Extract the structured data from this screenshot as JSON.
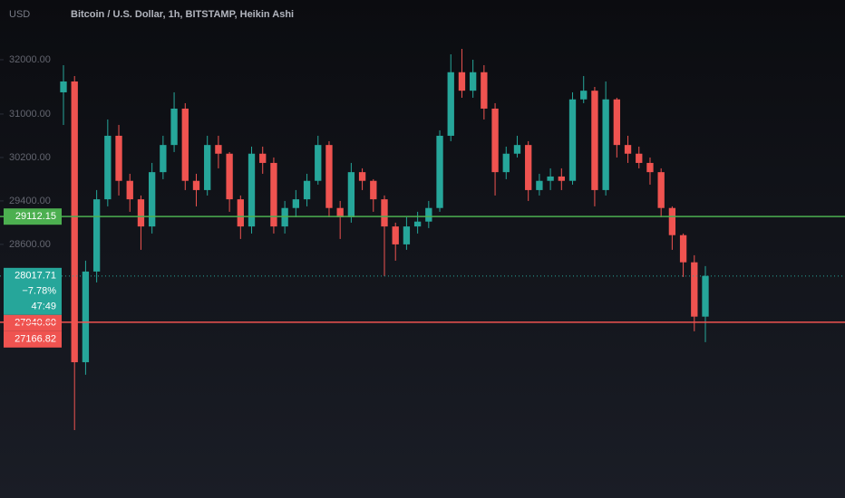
{
  "chart_data": {
    "type": "candlestick",
    "title": "Bitcoin / U.S. Dollar, 1h, BITSTAMP, Heikin Ashi",
    "y_label": "USD",
    "up_color": "#26a69a",
    "down_color": "#ef5350",
    "ylim": [
      23930,
      33100
    ],
    "yticks": [
      {
        "value": 32000,
        "label": "32000.00"
      },
      {
        "value": 31000,
        "label": "31000.00"
      },
      {
        "value": 30200,
        "label": "30200.00"
      },
      {
        "value": 29400,
        "label": "29400.00"
      },
      {
        "value": 28600,
        "label": "28600.00"
      }
    ],
    "open": [
      31400,
      31600,
      26430,
      28100,
      29430,
      30600,
      29770,
      29430,
      28930,
      29930,
      30430,
      31100,
      29770,
      29600,
      30430,
      30270,
      29430,
      28930,
      30270,
      30100,
      28930,
      29270,
      29430,
      29770,
      30430,
      29270,
      29100,
      29930,
      29770,
      29430,
      28930,
      28600,
      28930,
      29020,
      29270,
      30600,
      31770,
      31430,
      31770,
      31100,
      29930,
      30270,
      30430,
      29600,
      29770,
      29850,
      29770,
      31270,
      31430,
      29600,
      31270,
      30430,
      30270,
      30100,
      29930,
      29270,
      28770,
      28270,
      27270
    ],
    "high": [
      31900,
      31700,
      28300,
      29600,
      30900,
      30800,
      29900,
      29500,
      30100,
      30600,
      31400,
      31200,
      29900,
      30600,
      30600,
      30300,
      29500,
      30400,
      30400,
      30200,
      29400,
      29600,
      29900,
      30600,
      30500,
      29400,
      30100,
      30000,
      29800,
      29500,
      29000,
      29100,
      29200,
      29400,
      30700,
      32100,
      32200,
      32000,
      31900,
      31200,
      30400,
      30600,
      30500,
      29900,
      30000,
      30000,
      31400,
      31700,
      31500,
      31600,
      31300,
      30600,
      30400,
      30200,
      30000,
      29300,
      28800,
      28400,
      28200
    ],
    "low": [
      30800,
      25180,
      26200,
      27900,
      29300,
      29500,
      29200,
      28500,
      28800,
      29800,
      30300,
      29600,
      29300,
      29500,
      30000,
      29200,
      28700,
      28800,
      29900,
      28800,
      28800,
      29100,
      29300,
      29700,
      29100,
      28700,
      29000,
      29600,
      29200,
      28020,
      28300,
      28500,
      28800,
      28900,
      29200,
      30500,
      31300,
      31300,
      30900,
      29500,
      29800,
      30200,
      29400,
      29500,
      29600,
      29600,
      29700,
      31200,
      29300,
      29500,
      30200,
      30100,
      30000,
      29700,
      29100,
      28500,
      28000,
      27000,
      26800
    ],
    "close": [
      31600,
      26430,
      28100,
      29430,
      30600,
      29770,
      29430,
      28930,
      29930,
      30430,
      31100,
      29770,
      29600,
      30430,
      30270,
      29430,
      28930,
      30270,
      30100,
      28930,
      29270,
      29430,
      29770,
      30430,
      29270,
      29100,
      29930,
      29770,
      29430,
      28930,
      28600,
      28930,
      29020,
      29270,
      30600,
      31770,
      31430,
      31770,
      31100,
      29930,
      30270,
      30430,
      29600,
      29770,
      29850,
      29770,
      31270,
      31430,
      29600,
      31270,
      30430,
      30270,
      30100,
      29930,
      29270,
      28770,
      28270,
      27270,
      28020
    ],
    "markers": [
      {
        "value": 29112.15,
        "color": "#4caf50",
        "line": "solid"
      },
      {
        "value": 28017.71,
        "change": "−7.78%",
        "countdown": "47:49",
        "color": "#26a69a",
        "line": "dotted"
      },
      {
        "value": 27940.6,
        "value_label": "27940.60",
        "color": "#ef5350"
      },
      {
        "value": 27166.82,
        "color": "#ef5350",
        "line": "solid"
      }
    ]
  }
}
